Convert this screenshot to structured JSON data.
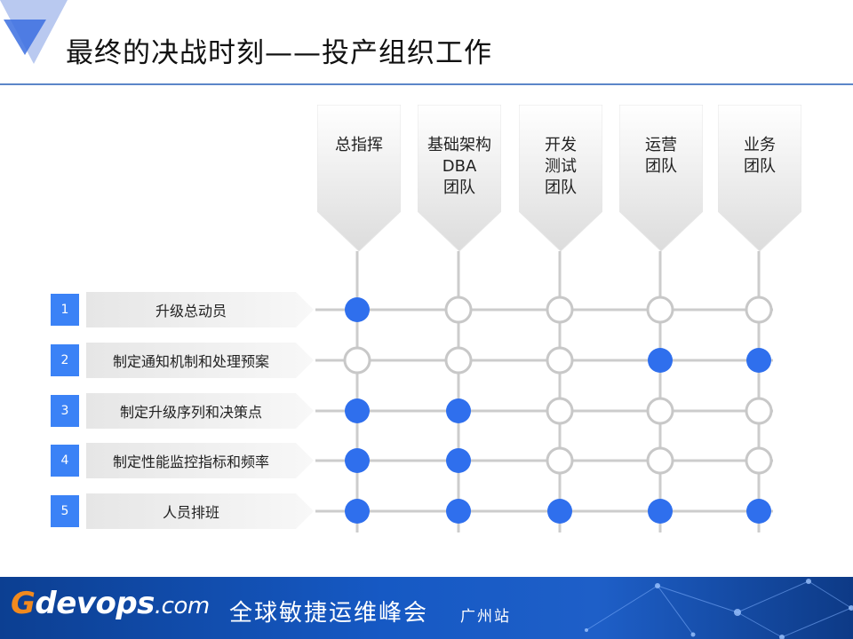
{
  "slide": {
    "title": "最终的决战时刻——投产组织工作"
  },
  "columns": [
    {
      "label": "总指挥"
    },
    {
      "label": "基础架构\nDBA\n团队"
    },
    {
      "label": "开发\n测试\n团队"
    },
    {
      "label": "运营\n团队"
    },
    {
      "label": "业务\n团队"
    }
  ],
  "rows": [
    {
      "number": "1",
      "task": "升级总动员",
      "assignments": [
        true,
        false,
        false,
        false,
        false
      ]
    },
    {
      "number": "2",
      "task": "制定通知机制和处理预案",
      "assignments": [
        false,
        false,
        false,
        true,
        true
      ]
    },
    {
      "number": "3",
      "task": "制定升级序列和决策点",
      "assignments": [
        true,
        true,
        false,
        false,
        false
      ]
    },
    {
      "number": "4",
      "task": "制定性能监控指标和频率",
      "assignments": [
        true,
        true,
        false,
        false,
        false
      ]
    },
    {
      "number": "5",
      "task": "人员排班",
      "assignments": [
        true,
        true,
        true,
        true,
        true
      ]
    }
  ],
  "footer": {
    "brand_g": "G",
    "brand_main": "devops",
    "brand_com": ".com",
    "event_name": "全球敏捷运维峰会",
    "city": "广州站"
  },
  "colors": {
    "accent_blue": "#3b82f6",
    "filled_dot": "#2f6fed",
    "empty_dot_stroke": "#c8c8c8",
    "grid_line": "#cccccc",
    "rule_blue": "#5b86c8",
    "footer_bg": "#1659c4",
    "brand_orange": "#f28a1e"
  }
}
